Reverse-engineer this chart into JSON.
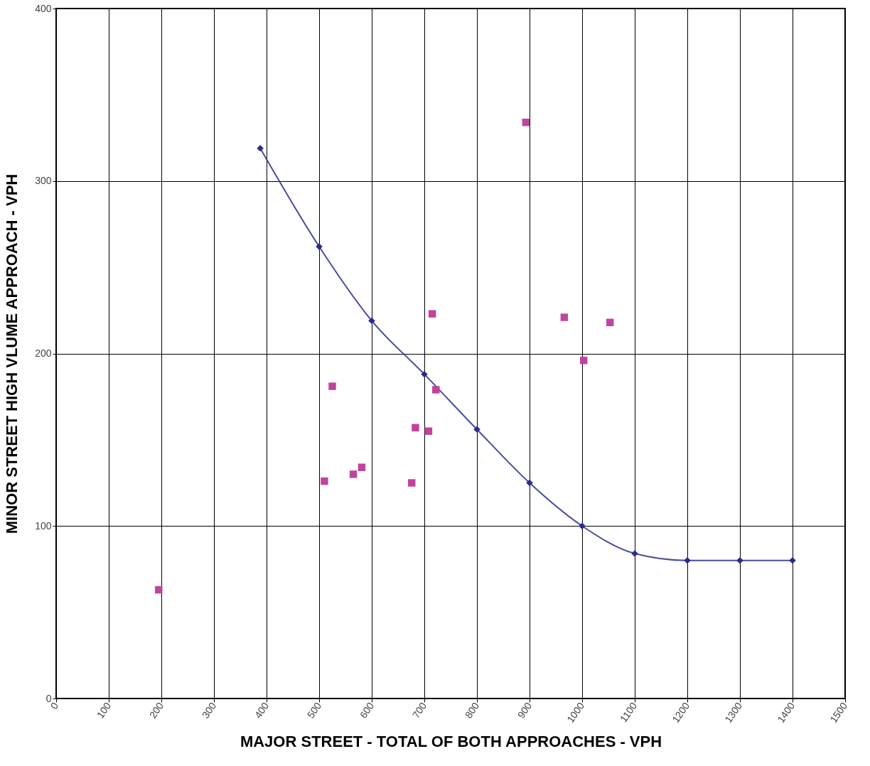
{
  "chart_data": {
    "type": "scatter",
    "xlabel": "MAJOR STREET - TOTAL OF BOTH APPROACHES - VPH",
    "ylabel": "MINOR STREET HIGH VLUME APPROACH - VPH",
    "xlim": [
      0,
      1500
    ],
    "xticks": [
      0,
      100,
      200,
      300,
      400,
      500,
      600,
      700,
      800,
      900,
      1000,
      1100,
      1200,
      1300,
      1400,
      1500
    ],
    "ylim": [
      0,
      400
    ],
    "yticks": [
      0,
      100,
      200,
      300,
      400
    ],
    "grid": true,
    "series": [
      {
        "type": "line",
        "color": "#2b2b8c",
        "marker": "diamond",
        "x": [
          388,
          500,
          600,
          700,
          800,
          900,
          1000,
          1100,
          1200,
          1300,
          1400
        ],
        "values": [
          319,
          262,
          219,
          188,
          156,
          125,
          100,
          84,
          80,
          80,
          80
        ]
      },
      {
        "color": "#c0449e",
        "marker": "square",
        "x": [
          195,
          510,
          525,
          565,
          581,
          676,
          683,
          708,
          715,
          722,
          893,
          966,
          1003,
          1053
        ],
        "values": [
          63,
          126,
          181,
          130,
          134,
          125,
          157,
          155,
          223,
          179,
          334,
          221,
          196,
          218
        ]
      }
    ]
  }
}
